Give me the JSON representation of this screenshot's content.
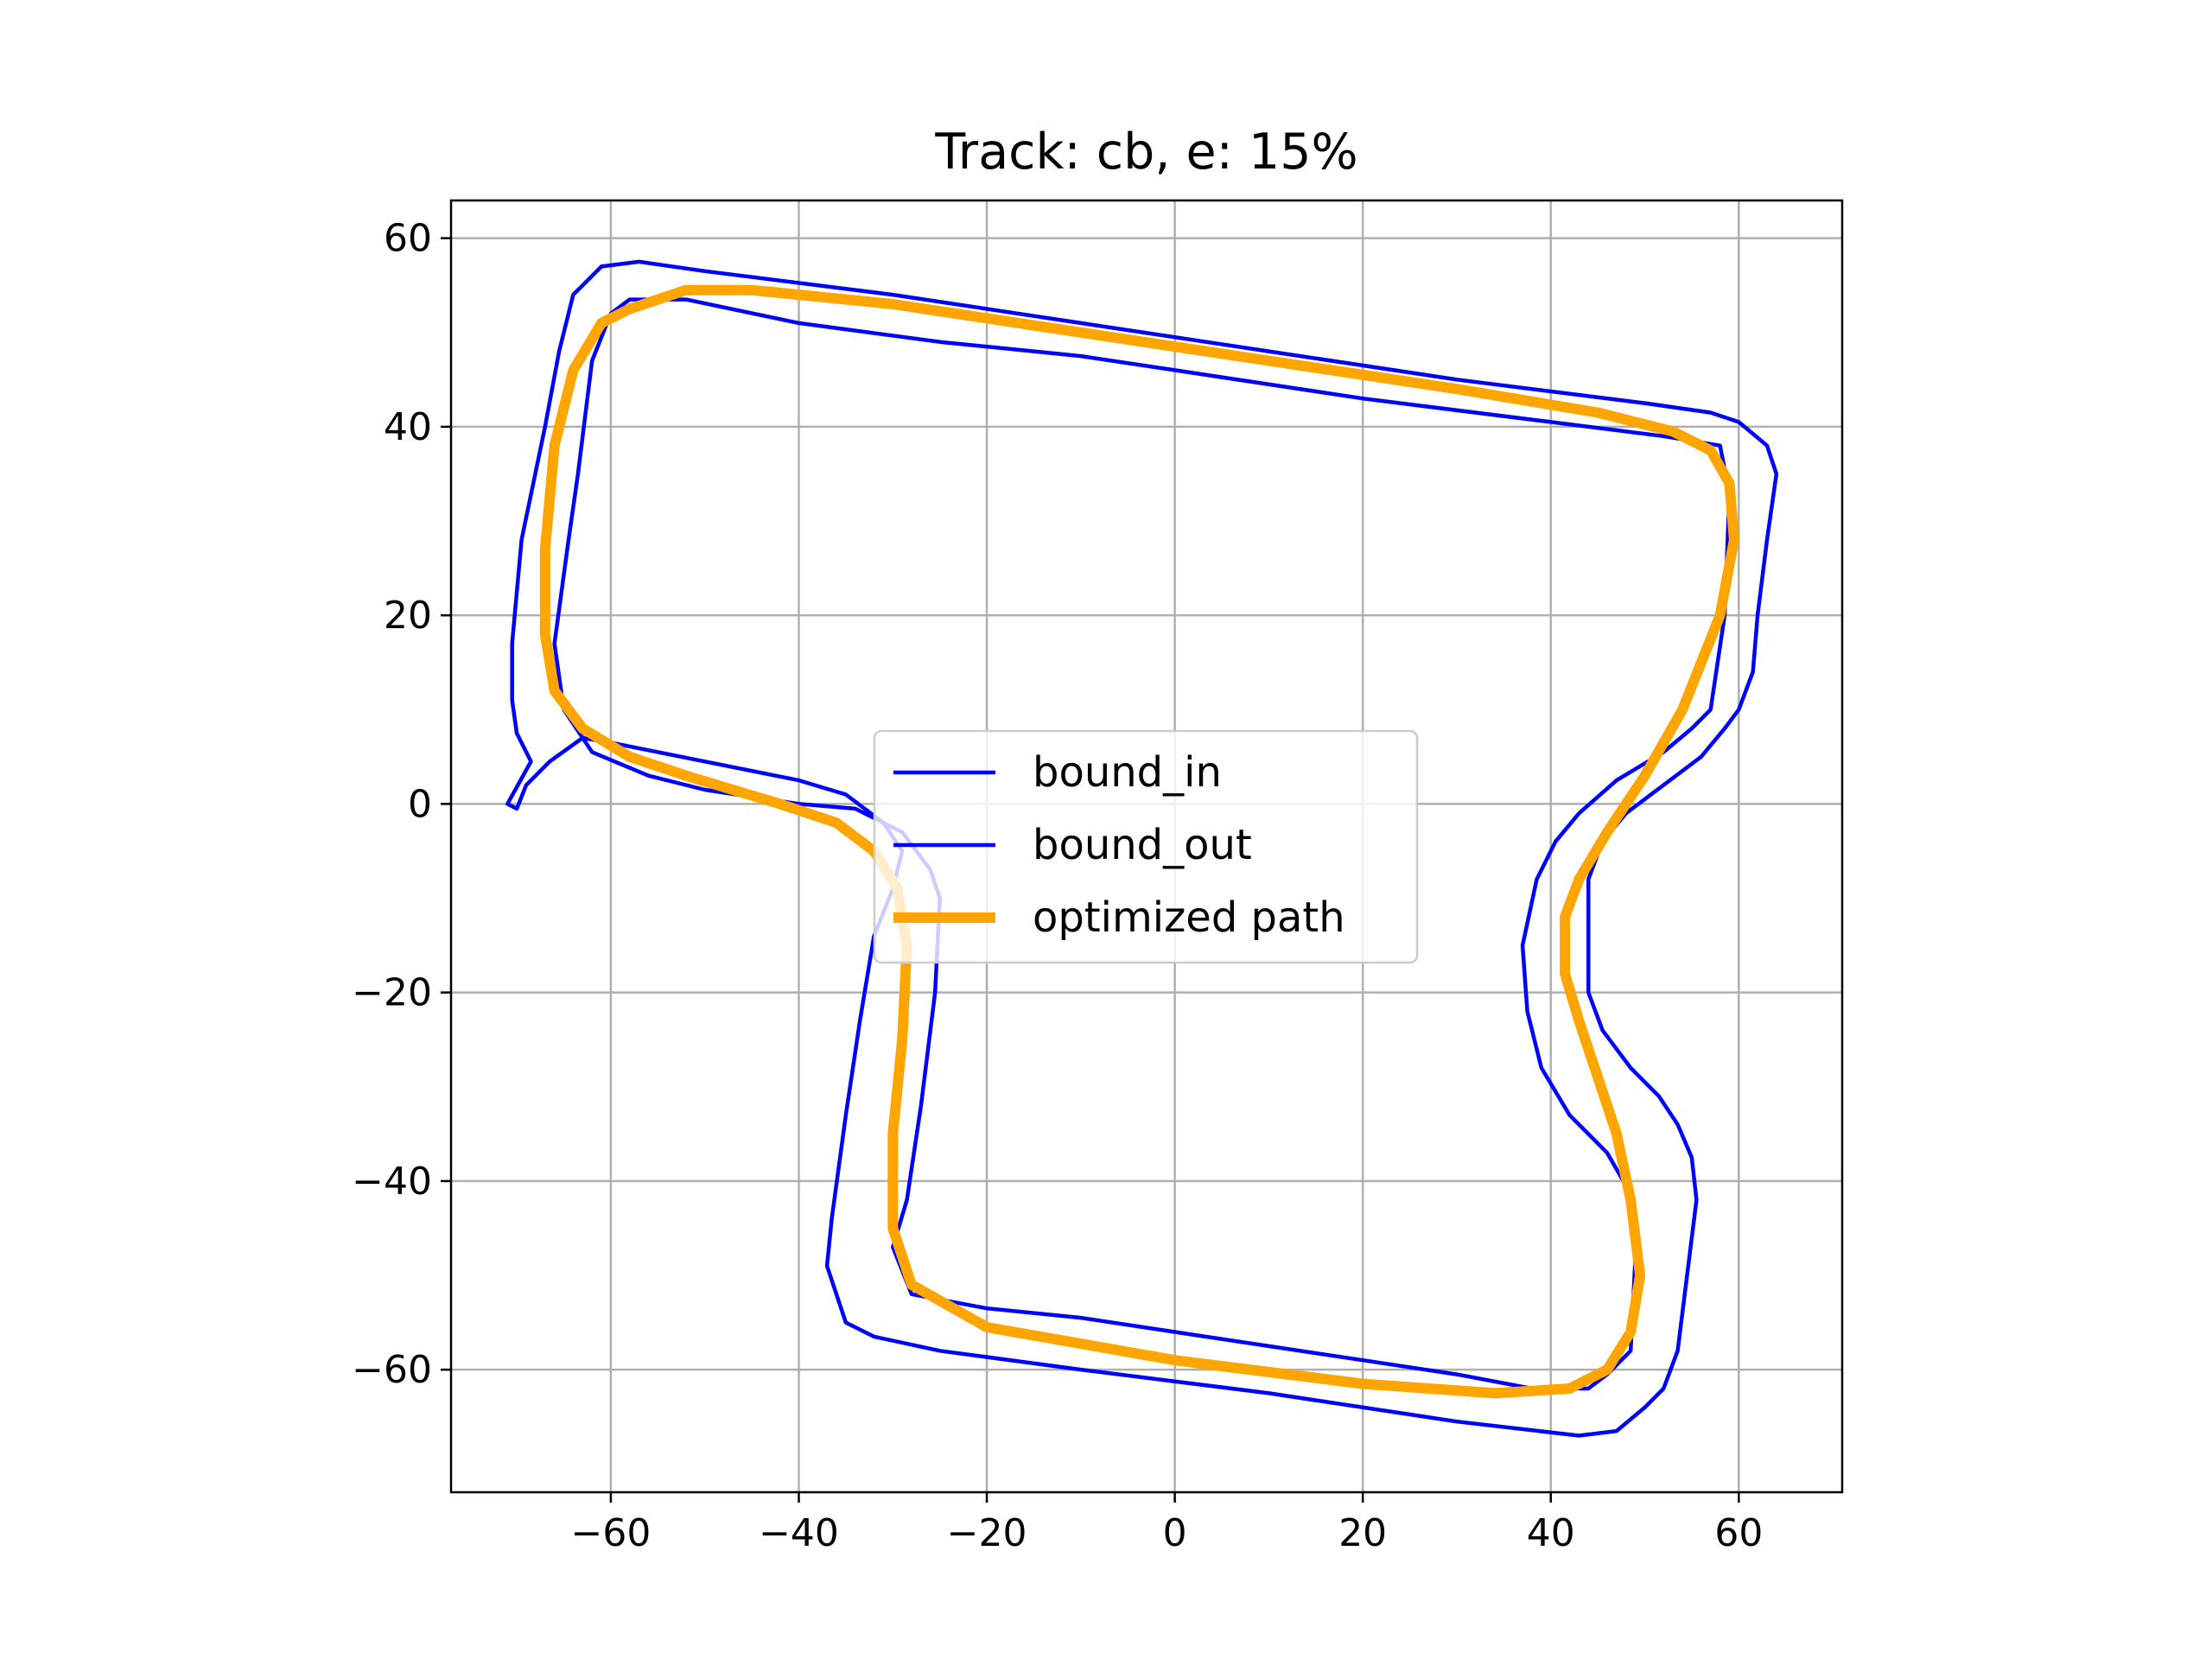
{
  "chart_data": {
    "type": "line",
    "title": "Track: cb, e: 15%",
    "xlabel": "",
    "ylabel": "",
    "xlim": [
      -77,
      71
    ],
    "ylim": [
      -73,
      64
    ],
    "xticks": [
      -60,
      -40,
      -20,
      0,
      20,
      40,
      60
    ],
    "yticks": [
      -60,
      -40,
      -20,
      0,
      20,
      40,
      60
    ],
    "grid": true,
    "legend_position": "center",
    "series": [
      {
        "name": "bound_in",
        "color": "#0000ff",
        "points": [
          [
            -62,
            47
          ],
          [
            -60,
            52
          ],
          [
            -58,
            53.5
          ],
          [
            -52,
            53.5
          ],
          [
            -40,
            51
          ],
          [
            -25,
            49
          ],
          [
            -15,
            48
          ],
          [
            -10,
            47.5
          ],
          [
            0,
            46
          ],
          [
            20,
            43
          ],
          [
            40,
            40.5
          ],
          [
            52,
            39
          ],
          [
            58,
            38
          ],
          [
            59,
            33
          ],
          [
            58.5,
            20
          ],
          [
            57,
            10
          ],
          [
            55,
            8
          ],
          [
            52,
            5.5
          ],
          [
            47,
            2.5
          ],
          [
            43,
            -1
          ],
          [
            40.5,
            -4
          ],
          [
            38.5,
            -8
          ],
          [
            37,
            -15
          ],
          [
            37.5,
            -22
          ],
          [
            39,
            -28
          ],
          [
            42,
            -33
          ],
          [
            46,
            -37
          ],
          [
            48,
            -40.5
          ],
          [
            49,
            -48
          ],
          [
            48.5,
            -58
          ],
          [
            46,
            -60.5
          ],
          [
            44,
            -62
          ],
          [
            38,
            -62
          ],
          [
            30,
            -60.5
          ],
          [
            20,
            -59
          ],
          [
            10,
            -57.5
          ],
          [
            0,
            -56
          ],
          [
            -10,
            -54.5
          ],
          [
            -20,
            -53.5
          ],
          [
            -28,
            -52
          ],
          [
            -30,
            -47
          ],
          [
            -28.5,
            -42
          ],
          [
            -27,
            -32
          ],
          [
            -25.5,
            -20
          ],
          [
            -25,
            -10
          ],
          [
            -26,
            -7
          ],
          [
            -29,
            -3
          ],
          [
            -34,
            -0.5
          ],
          [
            -40,
            0
          ],
          [
            -50,
            1.5
          ],
          [
            -56,
            3
          ],
          [
            -62,
            5.5
          ],
          [
            -65,
            10
          ],
          [
            -66,
            17
          ],
          [
            -64.5,
            28
          ],
          [
            -63.5,
            35
          ],
          [
            -62,
            47
          ]
        ]
      },
      {
        "name": "bound_out",
        "color": "#0000ff",
        "points": [
          [
            -57,
            57.5
          ],
          [
            -50,
            56.5
          ],
          [
            -30,
            54
          ],
          [
            -10,
            51
          ],
          [
            10,
            48
          ],
          [
            30,
            45
          ],
          [
            50,
            42.5
          ],
          [
            57,
            41.5
          ],
          [
            60,
            40.5
          ],
          [
            63,
            38
          ],
          [
            64,
            35
          ],
          [
            63,
            28
          ],
          [
            62,
            20
          ],
          [
            61.5,
            14
          ],
          [
            60,
            10
          ],
          [
            58.5,
            8
          ],
          [
            56,
            5
          ],
          [
            52,
            2
          ],
          [
            48,
            -1
          ],
          [
            45.5,
            -4
          ],
          [
            44,
            -8
          ],
          [
            44,
            -20
          ],
          [
            45.5,
            -24
          ],
          [
            48.5,
            -28
          ],
          [
            51.5,
            -31
          ],
          [
            53.5,
            -34
          ],
          [
            55,
            -37.5
          ],
          [
            55.5,
            -42
          ],
          [
            54.5,
            -50
          ],
          [
            53.5,
            -58
          ],
          [
            52,
            -62
          ],
          [
            50,
            -64
          ],
          [
            47,
            -66.5
          ],
          [
            43,
            -67
          ],
          [
            30,
            -65.5
          ],
          [
            10,
            -62.5
          ],
          [
            -10,
            -60
          ],
          [
            -25,
            -58
          ],
          [
            -32,
            -56.5
          ],
          [
            -35,
            -55
          ],
          [
            -36,
            -52
          ],
          [
            -37,
            -49
          ],
          [
            -36.5,
            -44
          ],
          [
            -35,
            -33
          ],
          [
            -33.5,
            -23
          ],
          [
            -32,
            -14
          ],
          [
            -30,
            -9
          ],
          [
            -29,
            -5
          ],
          [
            -31,
            -2
          ],
          [
            -35,
            1
          ],
          [
            -40,
            2.5
          ],
          [
            -50,
            4.5
          ],
          [
            -60,
            6.5
          ],
          [
            -63,
            7
          ],
          [
            -66.5,
            4.5
          ],
          [
            -69,
            2
          ],
          [
            -70,
            -0.5
          ],
          [
            -71,
            0
          ],
          [
            -68.5,
            4.5
          ],
          [
            -70,
            7.5
          ],
          [
            -70.5,
            11
          ],
          [
            -70.5,
            17
          ],
          [
            -69.5,
            28
          ],
          [
            -67,
            40
          ],
          [
            -65.5,
            48
          ],
          [
            -64,
            54
          ],
          [
            -61,
            57
          ],
          [
            -57,
            57.5
          ]
        ]
      },
      {
        "name": "optimized path",
        "color": "#ffa500",
        "points": [
          [
            -58,
            52.5
          ],
          [
            -52,
            54.5
          ],
          [
            -45,
            54.5
          ],
          [
            -30,
            53
          ],
          [
            -10,
            50
          ],
          [
            10,
            47
          ],
          [
            30,
            44
          ],
          [
            45,
            41.5
          ],
          [
            53,
            39.5
          ],
          [
            57,
            37.5
          ],
          [
            59,
            34
          ],
          [
            59.5,
            28
          ],
          [
            58,
            20
          ],
          [
            54,
            10
          ],
          [
            50,
            3
          ],
          [
            46,
            -3
          ],
          [
            43,
            -8
          ],
          [
            41.5,
            -12
          ],
          [
            41.5,
            -18
          ],
          [
            43,
            -23
          ],
          [
            45,
            -29
          ],
          [
            47,
            -35
          ],
          [
            48.5,
            -42
          ],
          [
            49.5,
            -50
          ],
          [
            48.5,
            -56
          ],
          [
            46,
            -60
          ],
          [
            42,
            -62
          ],
          [
            34,
            -62.5
          ],
          [
            20,
            -61.5
          ],
          [
            0,
            -59
          ],
          [
            -20,
            -55.5
          ],
          [
            -28,
            -51
          ],
          [
            -30,
            -45
          ],
          [
            -30,
            -35
          ],
          [
            -29,
            -25
          ],
          [
            -28.5,
            -15
          ],
          [
            -29.5,
            -9
          ],
          [
            -32,
            -5
          ],
          [
            -36,
            -2
          ],
          [
            -42,
            0
          ],
          [
            -52,
            3
          ],
          [
            -58,
            5
          ],
          [
            -63,
            8
          ],
          [
            -66,
            12
          ],
          [
            -67,
            18
          ],
          [
            -67,
            27
          ],
          [
            -66,
            38
          ],
          [
            -64,
            46
          ],
          [
            -61,
            51
          ],
          [
            -58,
            52.5
          ]
        ]
      }
    ]
  }
}
